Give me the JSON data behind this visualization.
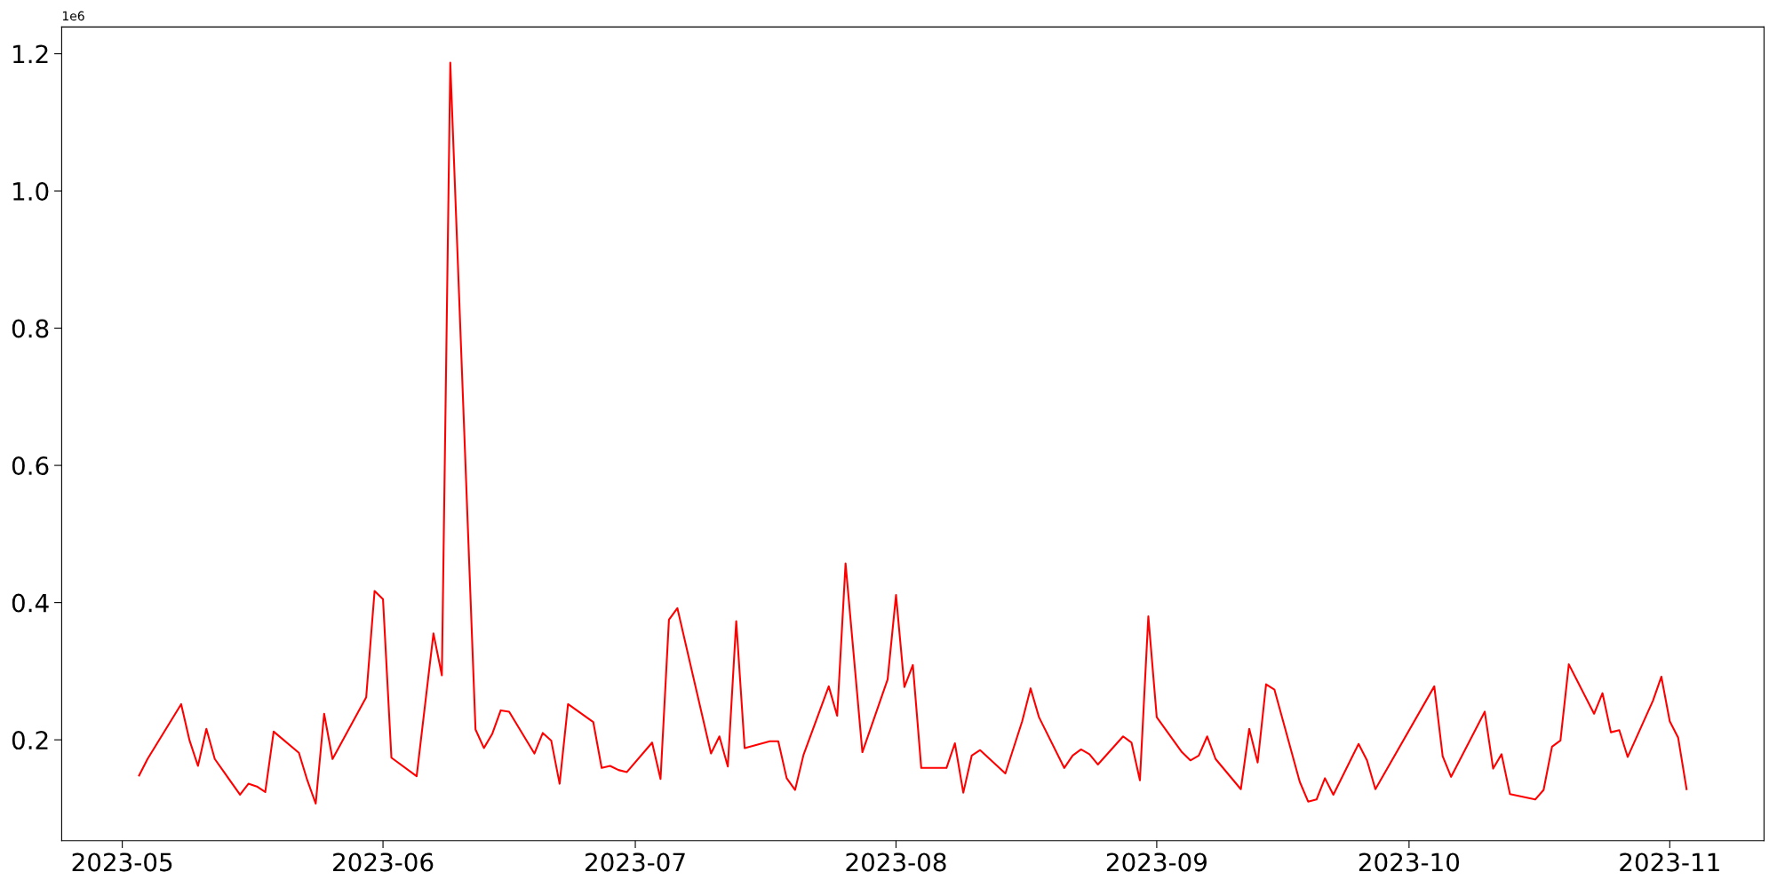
{
  "chart_data": {
    "type": "line",
    "annotations": [
      "1e6"
    ],
    "x": [
      "2023-05-03",
      "2023-05-04",
      "2023-05-08",
      "2023-05-09",
      "2023-05-10",
      "2023-05-11",
      "2023-05-12",
      "2023-05-15",
      "2023-05-16",
      "2023-05-17",
      "2023-05-18",
      "2023-05-19",
      "2023-05-22",
      "2023-05-23",
      "2023-05-24",
      "2023-05-25",
      "2023-05-26",
      "2023-05-30",
      "2023-05-31",
      "2023-06-01",
      "2023-06-02",
      "2023-06-05",
      "2023-06-07",
      "2023-06-08",
      "2023-06-09",
      "2023-06-12",
      "2023-06-13",
      "2023-06-14",
      "2023-06-15",
      "2023-06-16",
      "2023-06-19",
      "2023-06-20",
      "2023-06-21",
      "2023-06-22",
      "2023-06-23",
      "2023-06-26",
      "2023-06-27",
      "2023-06-28",
      "2023-06-29",
      "2023-06-30",
      "2023-07-03",
      "2023-07-04",
      "2023-07-05",
      "2023-07-06",
      "2023-07-10",
      "2023-07-11",
      "2023-07-12",
      "2023-07-13",
      "2023-07-14",
      "2023-07-17",
      "2023-07-18",
      "2023-07-19",
      "2023-07-20",
      "2023-07-21",
      "2023-07-24",
      "2023-07-25",
      "2023-07-26",
      "2023-07-28",
      "2023-07-31",
      "2023-08-01",
      "2023-08-02",
      "2023-08-03",
      "2023-08-04",
      "2023-08-07",
      "2023-08-08",
      "2023-08-09",
      "2023-08-10",
      "2023-08-11",
      "2023-08-14",
      "2023-08-16",
      "2023-08-17",
      "2023-08-18",
      "2023-08-21",
      "2023-08-22",
      "2023-08-23",
      "2023-08-24",
      "2023-08-25",
      "2023-08-28",
      "2023-08-29",
      "2023-08-30",
      "2023-08-31",
      "2023-09-01",
      "2023-09-04",
      "2023-09-05",
      "2023-09-06",
      "2023-09-07",
      "2023-09-08",
      "2023-09-11",
      "2023-09-12",
      "2023-09-13",
      "2023-09-14",
      "2023-09-15",
      "2023-09-18",
      "2023-09-19",
      "2023-09-20",
      "2023-09-21",
      "2023-09-22",
      "2023-09-25",
      "2023-09-26",
      "2023-09-27",
      "2023-10-04",
      "2023-10-05",
      "2023-10-06",
      "2023-10-10",
      "2023-10-11",
      "2023-10-12",
      "2023-10-13",
      "2023-10-16",
      "2023-10-17",
      "2023-10-18",
      "2023-10-19",
      "2023-10-20",
      "2023-10-23",
      "2023-10-24",
      "2023-10-25",
      "2023-10-26",
      "2023-10-27",
      "2023-10-30",
      "2023-10-31",
      "2023-11-01",
      "2023-11-02",
      "2023-11-03"
    ],
    "series": [
      {
        "color": "#ff0000",
        "values": [
          0.148,
          0.172,
          0.252,
          0.199,
          0.162,
          0.216,
          0.172,
          0.12,
          0.136,
          0.132,
          0.124,
          0.212,
          0.181,
          0.141,
          0.107,
          0.238,
          0.172,
          0.262,
          0.417,
          0.405,
          0.174,
          0.147,
          0.355,
          0.294,
          1.187,
          0.215,
          0.188,
          0.209,
          0.243,
          0.241,
          0.18,
          0.21,
          0.199,
          0.136,
          0.252,
          0.226,
          0.159,
          0.162,
          0.156,
          0.153,
          0.196,
          0.143,
          0.375,
          0.392,
          0.18,
          0.205,
          0.161,
          0.373,
          0.188,
          0.198,
          0.198,
          0.144,
          0.127,
          0.178,
          0.278,
          0.235,
          0.457,
          0.182,
          0.288,
          0.411,
          0.277,
          0.309,
          0.159,
          0.159,
          0.195,
          0.123,
          0.177,
          0.185,
          0.151,
          0.227,
          0.275,
          0.233,
          0.159,
          0.177,
          0.186,
          0.179,
          0.164,
          0.205,
          0.196,
          0.141,
          0.38,
          0.233,
          0.182,
          0.17,
          0.177,
          0.205,
          0.172,
          0.128,
          0.216,
          0.167,
          0.281,
          0.273,
          0.139,
          0.11,
          0.113,
          0.144,
          0.12,
          0.194,
          0.17,
          0.128,
          0.278,
          0.176,
          0.146,
          0.241,
          0.158,
          0.179,
          0.121,
          0.113,
          0.127,
          0.19,
          0.199,
          0.31,
          0.238,
          0.268,
          0.211,
          0.214,
          0.175,
          0.257,
          0.292,
          0.227,
          0.203,
          0.128
        ]
      }
    ],
    "xlim": [
      "2023-04-23T19:00",
      "2023-11-12T05:00"
    ],
    "xticks": [
      {
        "value": "2023-05-01",
        "label": "2023-05"
      },
      {
        "value": "2023-06-01",
        "label": "2023-06"
      },
      {
        "value": "2023-07-01",
        "label": "2023-07"
      },
      {
        "value": "2023-08-01",
        "label": "2023-08"
      },
      {
        "value": "2023-09-01",
        "label": "2023-09"
      },
      {
        "value": "2023-10-01",
        "label": "2023-10"
      },
      {
        "value": "2023-11-01",
        "label": "2023-11"
      }
    ],
    "ylim": [
      0.053,
      1.239
    ],
    "yticks": [
      0.2,
      0.4,
      0.6,
      0.8,
      {
        "value": 1.0,
        "label": "1.0"
      },
      1.2
    ],
    "grid": false,
    "marker": "none",
    "line_style": "solid"
  }
}
